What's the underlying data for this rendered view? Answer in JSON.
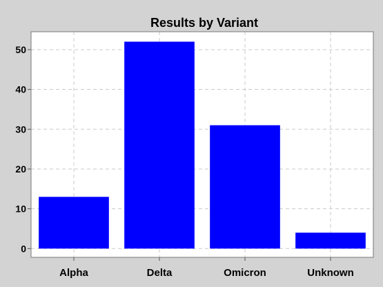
{
  "chart_data": {
    "type": "bar",
    "title": "Results by Variant",
    "xlabel": "",
    "ylabel": "",
    "categories": [
      "Alpha",
      "Delta",
      "Omicron",
      "Unknown"
    ],
    "values": [
      13,
      52,
      31,
      4
    ],
    "ylim": [
      -2.2,
      54.5
    ],
    "yticks": [
      0,
      10,
      20,
      30,
      40,
      50
    ],
    "grid": true,
    "legend": "none",
    "colors": {
      "bar": "#0000ff",
      "plot_background": "#ffffff",
      "figure_background": "#d3d3d3",
      "grid": "#c8c8c8"
    }
  }
}
